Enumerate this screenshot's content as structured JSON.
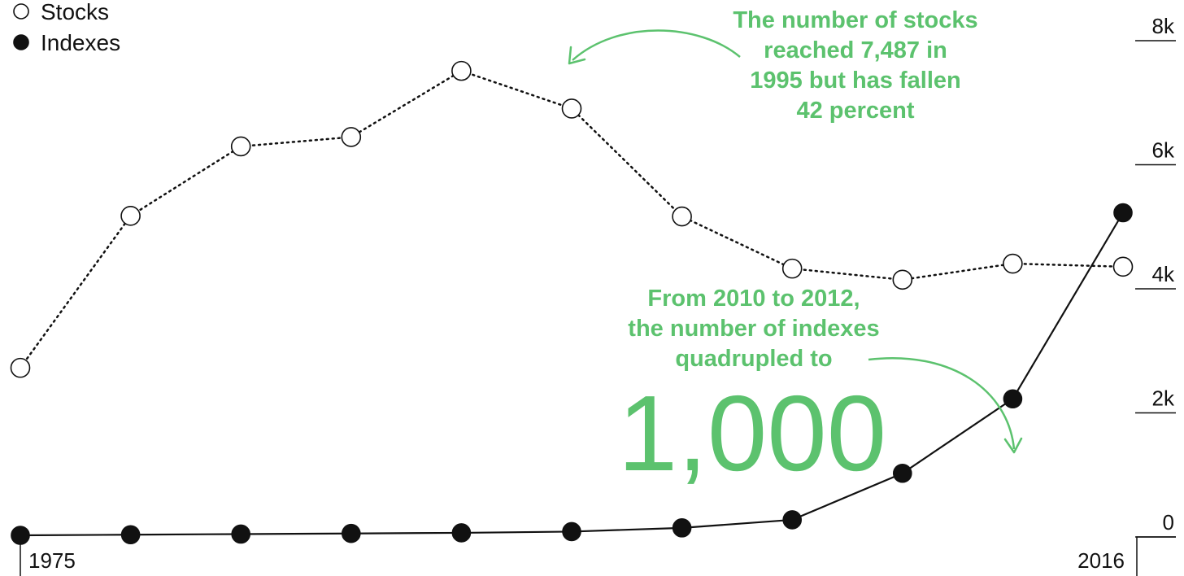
{
  "colors": {
    "accent": "#5cc26e",
    "line": "#111111",
    "background": "#ffffff"
  },
  "legend": {
    "items": [
      {
        "label": "Stocks",
        "marker": "open-circle"
      },
      {
        "label": "Indexes",
        "marker": "filled-circle"
      }
    ]
  },
  "annotations": {
    "stocks_note": [
      "The number of stocks",
      "reached 7,487 in",
      "1995 but has fallen",
      "42 percent"
    ],
    "indexes_note": [
      "From 2010 to 2012,",
      "the number of indexes",
      "quadrupled to"
    ],
    "indexes_big": "1,000"
  },
  "chart_data": {
    "type": "line",
    "x_tick_labels": [
      "1975",
      "2016"
    ],
    "y_tick_labels": [
      "0",
      "2k",
      "4k",
      "6k",
      "8k"
    ],
    "ylim": [
      0,
      8000
    ],
    "series": [
      {
        "name": "Stocks",
        "style": "dotted",
        "marker": "open-circle",
        "x": [
          1975,
          1980,
          1985,
          1990,
          1995,
          2000,
          2005,
          2010,
          2012,
          2014,
          2016
        ],
        "values": [
          2700,
          5150,
          6270,
          6420,
          7487,
          6880,
          5140,
          4300,
          4120,
          4380,
          4330
        ]
      },
      {
        "name": "Indexes",
        "style": "solid",
        "marker": "filled-circle",
        "x": [
          1975,
          1980,
          1985,
          1990,
          1995,
          2000,
          2005,
          2010,
          2012,
          2014,
          2016
        ],
        "values": [
          0,
          10,
          20,
          30,
          40,
          60,
          120,
          250,
          1000,
          2200,
          5200
        ]
      }
    ]
  }
}
